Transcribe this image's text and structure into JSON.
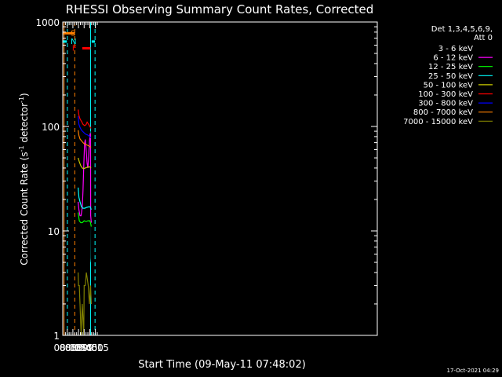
{
  "chart_data": {
    "type": "line",
    "title": "RHESSI Observing Summary Count Rates, Corrected",
    "xlabel": "Start Time (09-May-11 07:48:02)",
    "ylabel_main": "Corrected Count Rate (s",
    "ylabel_exp1": "-1",
    "ylabel_mid": " detector",
    "ylabel_exp2": "-1",
    "ylabel_end": ")",
    "yscale": "log",
    "ylim": [
      1,
      1000
    ],
    "xlim_min": [
      468,
      1306
    ],
    "x_ticks": [
      {
        "min": 480,
        "label": "08:00"
      },
      {
        "min": 495,
        "label": "08:15"
      },
      {
        "min": 510,
        "label": "08:30"
      },
      {
        "min": 525,
        "label": "08:45"
      },
      {
        "min": 540,
        "label": "09:00"
      },
      {
        "min": 555,
        "label": "09:15"
      }
    ],
    "y_ticks": [
      {
        "v": 1,
        "label": "1"
      },
      {
        "v": 10,
        "label": "10"
      },
      {
        "v": 100,
        "label": "100"
      },
      {
        "v": 1000,
        "label": "1000"
      }
    ],
    "legend_header": [
      "Det 1,3,4,5,6,9,",
      "Att 0"
    ],
    "legend_placement": "right",
    "series": [
      {
        "name": "3 - 6 keV",
        "color": "#000000",
        "points": [
          [
            509,
            14
          ],
          [
            511,
            11
          ],
          [
            514,
            10
          ],
          [
            517,
            10
          ],
          [
            519,
            11
          ],
          [
            522,
            16
          ],
          [
            524,
            28
          ],
          [
            526,
            60
          ],
          [
            527,
            72
          ],
          [
            530,
            70
          ],
          [
            533,
            52
          ],
          [
            534,
            40
          ],
          [
            536,
            50
          ],
          [
            538,
            65
          ],
          [
            540,
            85
          ],
          [
            541,
            90
          ],
          [
            543,
            5.5
          ],
          [
            544,
            5
          ]
        ]
      },
      {
        "name": "6 - 12 keV",
        "color": "#ff00ff",
        "points": [
          [
            509,
            19
          ],
          [
            511,
            16
          ],
          [
            514,
            14
          ],
          [
            517,
            14
          ],
          [
            520,
            17
          ],
          [
            522,
            24
          ],
          [
            524,
            42
          ],
          [
            526,
            68
          ],
          [
            528,
            75
          ],
          [
            530,
            62
          ],
          [
            533,
            44
          ],
          [
            535,
            40
          ],
          [
            537,
            52
          ],
          [
            539,
            70
          ],
          [
            541,
            85
          ],
          [
            542,
            85
          ],
          [
            542.5,
            14
          ],
          [
            544,
            12
          ]
        ]
      },
      {
        "name": "12 - 25 keV",
        "color": "#00ff00",
        "points": [
          [
            509,
            15
          ],
          [
            512,
            12.5
          ],
          [
            516,
            12
          ],
          [
            520,
            12
          ],
          [
            525,
            12.5
          ],
          [
            530,
            12.3
          ],
          [
            535,
            12.5
          ],
          [
            540,
            12.5
          ],
          [
            542,
            12
          ],
          [
            544,
            11
          ]
        ]
      },
      {
        "name": "25 - 50 keV",
        "color": "#00ffff",
        "points": [
          [
            509,
            26
          ],
          [
            511,
            21
          ],
          [
            514,
            19
          ],
          [
            518,
            17
          ],
          [
            522,
            16.5
          ],
          [
            527,
            16.5
          ],
          [
            532,
            16.8
          ],
          [
            537,
            17
          ],
          [
            541,
            17
          ],
          [
            544,
            16
          ]
        ]
      },
      {
        "name": "50 - 100 keV",
        "color": "#cccc00",
        "points": [
          [
            509,
            50
          ],
          [
            512,
            46
          ],
          [
            516,
            42
          ],
          [
            520,
            40
          ],
          [
            524,
            39.5
          ],
          [
            528,
            40
          ],
          [
            532,
            40.5
          ],
          [
            536,
            41
          ],
          [
            540,
            41
          ],
          [
            543,
            40
          ]
        ]
      },
      {
        "name": "100 - 300 keV",
        "color": "#ff0000",
        "points": [
          [
            509,
            145
          ],
          [
            511,
            128
          ],
          [
            514,
            118
          ],
          [
            518,
            112
          ],
          [
            522,
            105
          ],
          [
            526,
            102
          ],
          [
            530,
            104
          ],
          [
            533,
            110
          ],
          [
            536,
            106
          ],
          [
            540,
            100
          ],
          [
            543,
            96
          ]
        ]
      },
      {
        "name": "300 - 800 keV",
        "color": "#0000ff",
        "points": [
          [
            509,
            125
          ],
          [
            511,
            105
          ],
          [
            514,
            98
          ],
          [
            518,
            92
          ],
          [
            522,
            89
          ],
          [
            526,
            86
          ],
          [
            530,
            84
          ],
          [
            534,
            83
          ],
          [
            538,
            81
          ],
          [
            541,
            79
          ],
          [
            543,
            78
          ]
        ]
      },
      {
        "name": "800 - 7000 keV",
        "color": "#ff8000",
        "points": [
          [
            509,
            92
          ],
          [
            511,
            82
          ],
          [
            514,
            76
          ],
          [
            518,
            73
          ],
          [
            522,
            70
          ],
          [
            526,
            68
          ],
          [
            530,
            67
          ],
          [
            534,
            66
          ],
          [
            538,
            65
          ],
          [
            541,
            64
          ],
          [
            543,
            63
          ]
        ]
      },
      {
        "name": "7000 - 15000 keV",
        "color": "#808000",
        "points": [
          [
            509,
            4
          ],
          [
            510,
            3
          ],
          [
            512,
            3
          ],
          [
            514,
            2
          ],
          [
            517,
            1
          ],
          [
            520,
            2
          ],
          [
            524,
            1
          ],
          [
            525,
            3
          ],
          [
            528,
            3
          ],
          [
            531,
            4
          ],
          [
            536,
            3
          ],
          [
            539,
            2
          ],
          [
            542,
            3
          ],
          [
            544,
            2
          ]
        ]
      }
    ],
    "flags": [
      {
        "label": "S",
        "color": "#ff8000",
        "y": 780,
        "x0": 468,
        "x1": 500
      },
      {
        "label": "N",
        "color": "#00ffff",
        "y": 650,
        "x0": 468,
        "x1": 479
      },
      {
        "label": "F",
        "color": "#ff0000",
        "y": 560,
        "x0": 520,
        "x1": 542
      },
      {
        "label": "",
        "color": "#00ffff",
        "y": 650,
        "x0": 545,
        "x1": 554
      }
    ],
    "vlines": [
      {
        "min": 471.5,
        "color": "#ff8000",
        "dash": false
      },
      {
        "min": 480.3,
        "color": "#00ffff",
        "dash": true
      },
      {
        "min": 500.0,
        "color": "#ff8000",
        "dash": true
      },
      {
        "min": 542.3,
        "color": "#00ffff",
        "dash": false
      },
      {
        "min": 554.0,
        "color": "#00ffff",
        "dash": true
      }
    ],
    "footer": "17-Oct-2021 04:29"
  }
}
